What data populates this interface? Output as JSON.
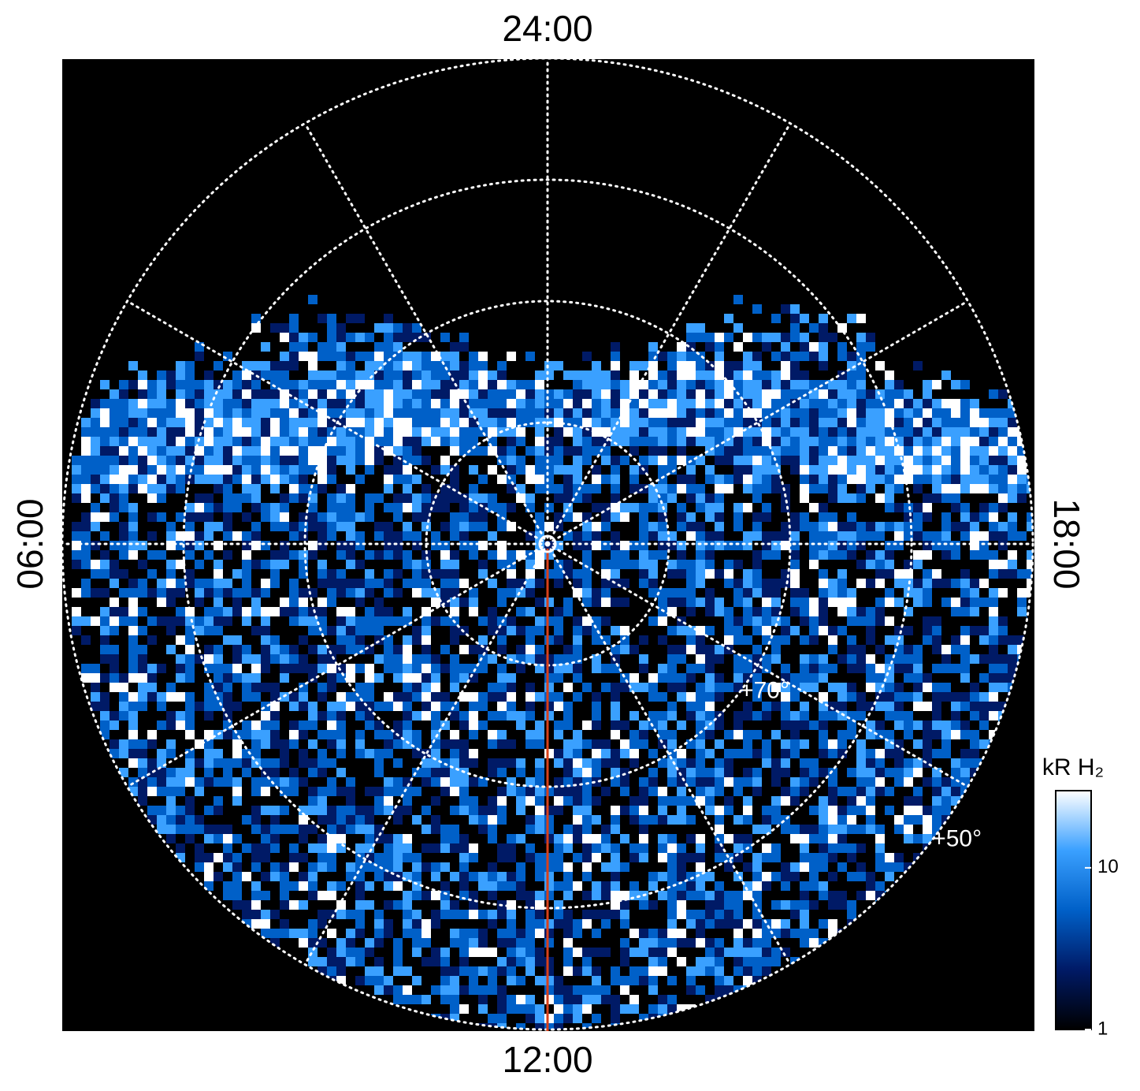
{
  "chart_data": {
    "type": "polar-image",
    "time_labels": {
      "top": "24:00",
      "left": "06:00",
      "right": "18:00",
      "bottom": "12:00"
    },
    "rlim": [
      90,
      50
    ],
    "rgrid": [
      80,
      70,
      60,
      50
    ],
    "rlabels": [
      {
        "value": 70,
        "label": "+70°"
      },
      {
        "value": 50,
        "label": "+50°"
      }
    ],
    "colorbar": {
      "label": "kR H₂",
      "log": true,
      "ylim": [
        1,
        30
      ],
      "yticks": [
        1,
        10
      ],
      "colors": [
        "#000000",
        "#001a66",
        "#0060c8",
        "#3aa0ff",
        "#ffffff"
      ]
    }
  }
}
